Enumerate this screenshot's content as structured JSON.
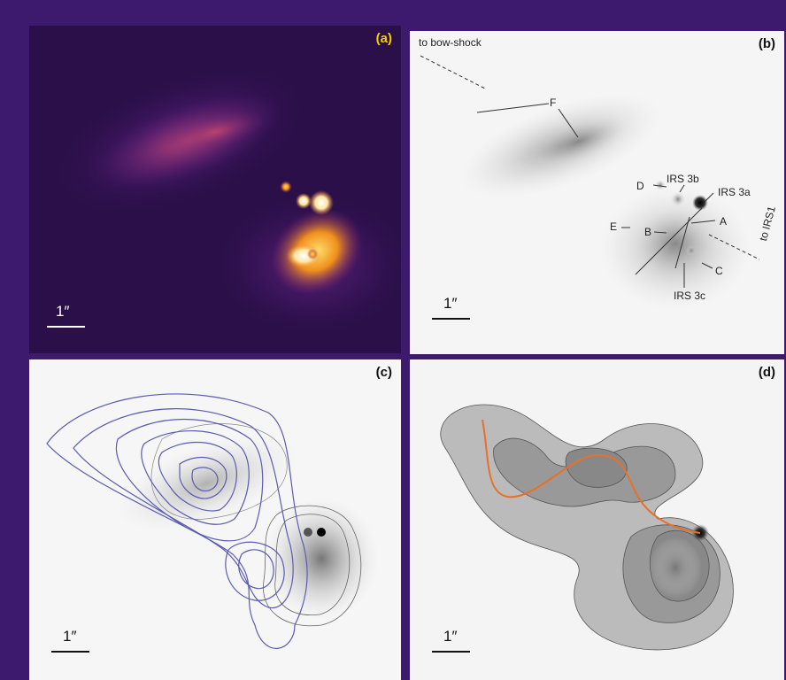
{
  "panels": {
    "a": {
      "label": "(a)",
      "scale_label": "1″",
      "label_color": "#f5d000"
    },
    "b": {
      "label": "(b)",
      "scale_label": "1″",
      "annotations": {
        "bow_shock": "to bow-shock",
        "F": "F",
        "irs3b": "IRS 3b",
        "irs3a": "IRS 3a",
        "D": "D",
        "A": "A",
        "E": "E",
        "B": "B",
        "C": "C",
        "irs3c": "IRS 3c",
        "irs1": "to IRS1"
      }
    },
    "c": {
      "label": "(c)",
      "scale_label": "1″"
    },
    "d": {
      "label": "(d)",
      "scale_label": "1″"
    }
  },
  "colors": {
    "frame": "#3d1a6e",
    "contour_blue": "#5b5bb0",
    "curve_orange": "#e8702a"
  }
}
